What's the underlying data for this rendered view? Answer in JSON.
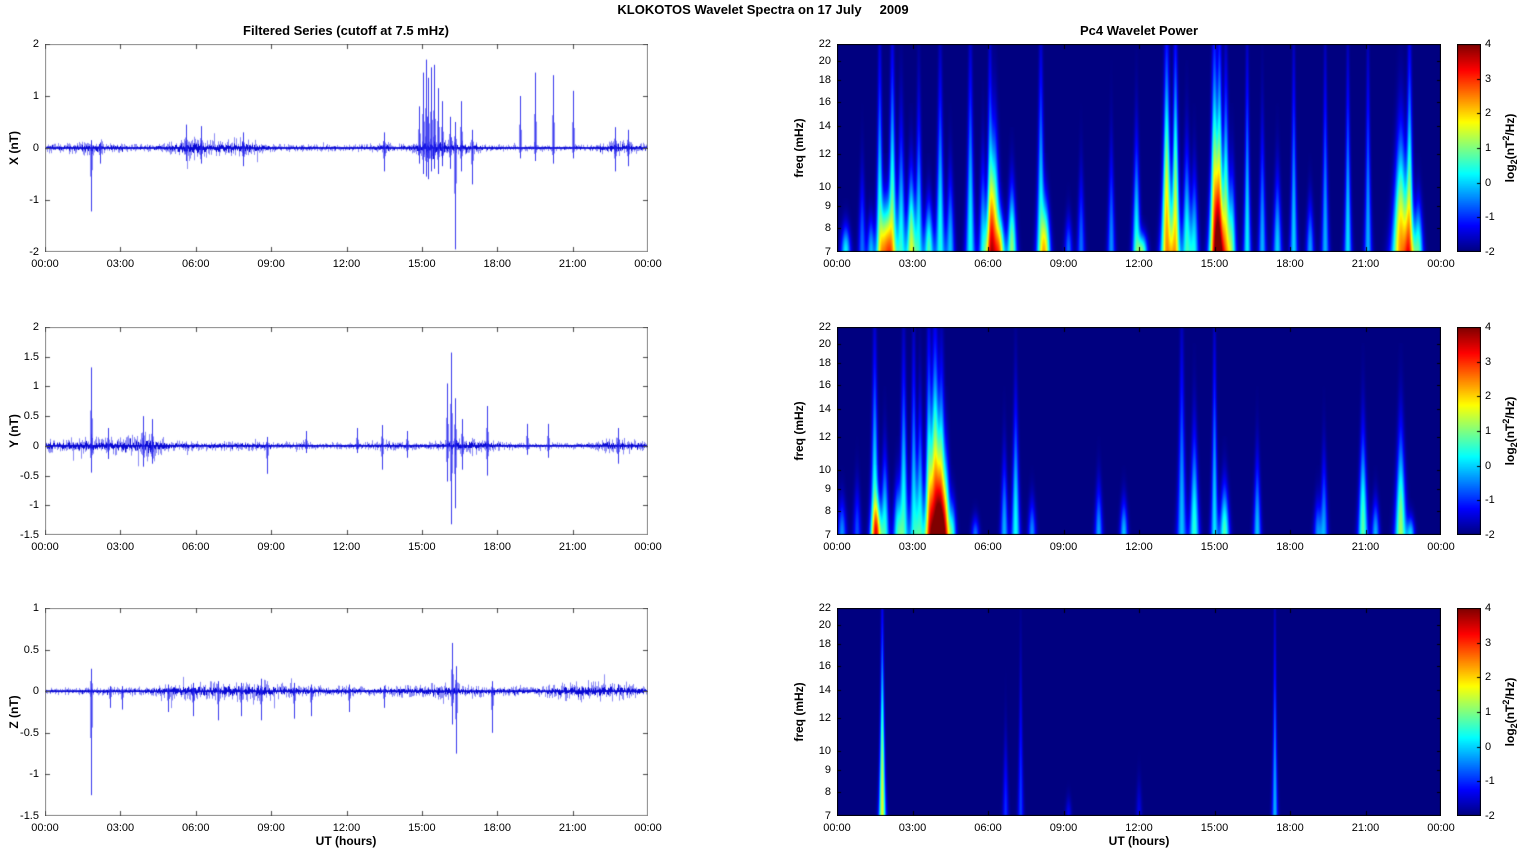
{
  "header": {
    "title": "KLOKOTOS Wavelet Spectra on 17 July     2009"
  },
  "panels": {
    "series_x": {
      "title": "Filtered Series (cutoff at 7.5 mHz)",
      "ylabel": "X (nT)"
    },
    "series_y": {
      "ylabel": "Y (nT)"
    },
    "series_z": {
      "ylabel": "Z (nT)"
    },
    "wavelet_x": {
      "title": "Pc4 Wavelet Power",
      "ylabel": "freq (mHz)"
    },
    "wavelet_y": {
      "ylabel": "freq (mHz)"
    },
    "wavelet_z": {
      "ylabel": "freq (mHz)"
    }
  },
  "time_axis": {
    "xlabel": "UT (hours)",
    "tick_labels": [
      "00:00",
      "03:00",
      "06:00",
      "09:00",
      "12:00",
      "15:00",
      "18:00",
      "21:00",
      "00:00"
    ],
    "tick_hours": [
      0,
      3,
      6,
      9,
      12,
      15,
      18,
      21,
      24
    ]
  },
  "colorbar": {
    "ticks": [
      "4",
      "3",
      "2",
      "1",
      "0",
      "-1",
      "-2"
    ],
    "clim": [
      -2,
      4
    ],
    "label": {
      "pre": "log",
      "sub": "2",
      "mid": "(nT",
      "sup": "2",
      "post": "/Hz)"
    }
  },
  "colors": {
    "line": "#0A0AE6",
    "line_soft": "rgba(20,20,235,0.55)",
    "background": "#FFFFFF",
    "colormap": "jet"
  },
  "chart_data": [
    {
      "id": "filtered-series-x",
      "type": "line",
      "title": "Filtered Series (cutoff at 7.5 mHz)",
      "ylabel": "X (nT)",
      "xlabel": "UT (hours)",
      "ylim": [
        -2,
        2
      ],
      "yticks": [
        "2",
        "1",
        "0",
        "-1",
        "-2"
      ],
      "x_range_hours": [
        0,
        24
      ],
      "grid": false,
      "noise_envelope": [
        [
          0,
          0.08
        ],
        [
          0.8,
          0.09
        ],
        [
          1.6,
          0.12
        ],
        [
          2.1,
          0.14
        ],
        [
          2.6,
          0.09
        ],
        [
          3.5,
          0.06
        ],
        [
          4.6,
          0.07
        ],
        [
          5.2,
          0.12
        ],
        [
          5.7,
          0.2
        ],
        [
          6.1,
          0.22
        ],
        [
          6.6,
          0.13
        ],
        [
          7.2,
          0.15
        ],
        [
          7.8,
          0.17
        ],
        [
          8.4,
          0.12
        ],
        [
          9.0,
          0.07
        ],
        [
          10,
          0.06
        ],
        [
          11,
          0.06
        ],
        [
          12,
          0.06
        ],
        [
          13.2,
          0.07
        ],
        [
          13.6,
          0.12
        ],
        [
          14.1,
          0.07
        ],
        [
          14.8,
          0.1
        ],
        [
          15.2,
          0.2
        ],
        [
          15.6,
          0.22
        ],
        [
          16.0,
          0.15
        ],
        [
          16.5,
          0.13
        ],
        [
          17.2,
          0.09
        ],
        [
          18,
          0.06
        ],
        [
          19,
          0.05
        ],
        [
          20,
          0.05
        ],
        [
          21,
          0.05
        ],
        [
          21.9,
          0.06
        ],
        [
          22.5,
          0.14
        ],
        [
          23.0,
          0.14
        ],
        [
          23.5,
          0.1
        ],
        [
          24,
          0.07
        ]
      ],
      "spikes": [
        [
          1.85,
          0.15,
          -1.22
        ],
        [
          2.2,
          0.1,
          -0.3
        ],
        [
          5.6,
          0.45,
          -0.25
        ],
        [
          6.2,
          0.42,
          -0.3
        ],
        [
          7.9,
          0.3,
          -0.35
        ],
        [
          13.5,
          0.3,
          -0.45
        ],
        [
          14.9,
          0.8,
          -0.3
        ],
        [
          15.05,
          1.45,
          -0.5
        ],
        [
          15.15,
          1.7,
          -0.55
        ],
        [
          15.25,
          1.35,
          -0.6
        ],
        [
          15.35,
          1.55,
          -0.45
        ],
        [
          15.5,
          1.6,
          -0.4
        ],
        [
          15.65,
          1.15,
          -0.5
        ],
        [
          15.8,
          0.9,
          -0.35
        ],
        [
          16.1,
          0.6,
          -0.4
        ],
        [
          16.3,
          0.5,
          -1.95
        ],
        [
          16.55,
          0.9,
          -0.45
        ],
        [
          17.0,
          0.35,
          -0.7
        ],
        [
          18.9,
          1.0,
          -0.2
        ],
        [
          19.5,
          1.45,
          -0.25
        ],
        [
          20.2,
          1.4,
          -0.3
        ],
        [
          21.0,
          1.1,
          -0.2
        ],
        [
          22.7,
          0.4,
          -0.45
        ],
        [
          23.2,
          0.35,
          -0.35
        ]
      ]
    },
    {
      "id": "filtered-series-y",
      "type": "line",
      "ylabel": "Y (nT)",
      "ylim": [
        -1.5,
        2
      ],
      "yticks": [
        "2",
        "1.5",
        "1",
        "0.5",
        "0",
        "-0.5",
        "-1",
        "-1.5"
      ],
      "x_range_hours": [
        0,
        24
      ],
      "grid": false,
      "noise_envelope": [
        [
          0,
          0.1
        ],
        [
          0.5,
          0.11
        ],
        [
          1.2,
          0.12
        ],
        [
          2.0,
          0.13
        ],
        [
          2.8,
          0.13
        ],
        [
          3.4,
          0.15
        ],
        [
          3.9,
          0.2
        ],
        [
          4.3,
          0.22
        ],
        [
          4.7,
          0.12
        ],
        [
          5.2,
          0.08
        ],
        [
          6,
          0.07
        ],
        [
          7,
          0.07
        ],
        [
          8,
          0.08
        ],
        [
          9,
          0.06
        ],
        [
          10,
          0.06
        ],
        [
          11,
          0.05
        ],
        [
          12,
          0.05
        ],
        [
          13.2,
          0.06
        ],
        [
          13.5,
          0.1
        ],
        [
          14,
          0.06
        ],
        [
          15,
          0.06
        ],
        [
          15.8,
          0.08
        ],
        [
          16.2,
          0.12
        ],
        [
          16.8,
          0.12
        ],
        [
          17.5,
          0.11
        ],
        [
          18.2,
          0.07
        ],
        [
          19,
          0.05
        ],
        [
          20,
          0.05
        ],
        [
          21,
          0.05
        ],
        [
          21.9,
          0.06
        ],
        [
          22.5,
          0.12
        ],
        [
          23.1,
          0.11
        ],
        [
          23.6,
          0.09
        ],
        [
          24,
          0.07
        ]
      ],
      "spikes": [
        [
          1.85,
          1.32,
          -0.45
        ],
        [
          2.5,
          0.3,
          -0.22
        ],
        [
          3.9,
          0.5,
          -0.35
        ],
        [
          4.25,
          0.45,
          -0.3
        ],
        [
          8.85,
          0.15,
          -0.47
        ],
        [
          10.4,
          0.25,
          -0.12
        ],
        [
          12.4,
          0.3,
          -0.12
        ],
        [
          13.4,
          0.35,
          -0.4
        ],
        [
          14.4,
          0.25,
          -0.2
        ],
        [
          16.0,
          1.05,
          -0.6
        ],
        [
          16.15,
          1.57,
          -1.32
        ],
        [
          16.3,
          0.8,
          -1.05
        ],
        [
          16.6,
          0.45,
          -0.4
        ],
        [
          17.6,
          0.67,
          -0.5
        ],
        [
          19.2,
          0.37,
          -0.15
        ],
        [
          20.0,
          0.37,
          -0.2
        ],
        [
          22.8,
          0.3,
          -0.3
        ]
      ]
    },
    {
      "id": "filtered-series-z",
      "type": "line",
      "ylabel": "Z (nT)",
      "xlabel": "UT (hours)",
      "ylim": [
        -1.5,
        1
      ],
      "yticks": [
        "1",
        "0.5",
        "0",
        "-0.5",
        "-1",
        "-1.5"
      ],
      "x_range_hours": [
        0,
        24
      ],
      "grid": false,
      "noise_envelope": [
        [
          0,
          0.035
        ],
        [
          1,
          0.035
        ],
        [
          2,
          0.04
        ],
        [
          3,
          0.045
        ],
        [
          4,
          0.05
        ],
        [
          4.6,
          0.07
        ],
        [
          5.2,
          0.09
        ],
        [
          6,
          0.1
        ],
        [
          6.8,
          0.11
        ],
        [
          7.6,
          0.1
        ],
        [
          8.4,
          0.11
        ],
        [
          9.2,
          0.09
        ],
        [
          10,
          0.07
        ],
        [
          11,
          0.06
        ],
        [
          12,
          0.055
        ],
        [
          13,
          0.05
        ],
        [
          14,
          0.06
        ],
        [
          15,
          0.07
        ],
        [
          15.7,
          0.09
        ],
        [
          16.3,
          0.08
        ],
        [
          17,
          0.07
        ],
        [
          18,
          0.05
        ],
        [
          19,
          0.05
        ],
        [
          19.8,
          0.06
        ],
        [
          20.6,
          0.1
        ],
        [
          21.4,
          0.1
        ],
        [
          22.2,
          0.1
        ],
        [
          23.0,
          0.1
        ],
        [
          23.6,
          0.07
        ],
        [
          24,
          0.05
        ]
      ],
      "spikes": [
        [
          1.85,
          0.27,
          -1.25
        ],
        [
          2.6,
          0.06,
          -0.2
        ],
        [
          3.05,
          0.06,
          -0.22
        ],
        [
          4.9,
          0.08,
          -0.25
        ],
        [
          5.9,
          0.1,
          -0.3
        ],
        [
          6.9,
          0.12,
          -0.35
        ],
        [
          7.8,
          0.1,
          -0.3
        ],
        [
          8.6,
          0.15,
          -0.35
        ],
        [
          9.9,
          0.1,
          -0.33
        ],
        [
          10.6,
          0.08,
          -0.3
        ],
        [
          12.1,
          0.08,
          -0.25
        ],
        [
          13.5,
          0.06,
          -0.2
        ],
        [
          16.2,
          0.58,
          -0.4
        ],
        [
          16.35,
          0.3,
          -0.75
        ],
        [
          17.8,
          0.12,
          -0.5
        ]
      ]
    },
    {
      "id": "pc4-wavelet-power-x",
      "type": "heatmap",
      "title": "Pc4 Wavelet Power",
      "ylabel": "freq (mHz)",
      "freq_lim": [
        7,
        22
      ],
      "freq_scale": "log",
      "freq_ticks": [
        "22",
        "20",
        "18",
        "16",
        "14",
        "12",
        "10",
        "9",
        "8",
        "7"
      ],
      "clim": [
        -2,
        4
      ],
      "x_range_hours": [
        0,
        24
      ],
      "streaks": [
        [
          0.35,
          8.5,
          2.2,
          0.05
        ],
        [
          1.0,
          12,
          1.4,
          0.04
        ],
        [
          1.35,
          9,
          1.8,
          0.04
        ],
        [
          1.7,
          23,
          2.6,
          0.045
        ],
        [
          1.95,
          10,
          3.8,
          0.06
        ],
        [
          2.2,
          23,
          3.1,
          0.05
        ],
        [
          2.55,
          16,
          2.4,
          0.05
        ],
        [
          2.95,
          12,
          3.4,
          0.05
        ],
        [
          3.25,
          18,
          2.2,
          0.045
        ],
        [
          3.65,
          10,
          2.7,
          0.05
        ],
        [
          4.1,
          21,
          2.4,
          0.05
        ],
        [
          4.5,
          12,
          1.9,
          0.045
        ],
        [
          5.3,
          23,
          2.3,
          0.05
        ],
        [
          5.8,
          13,
          2.0,
          0.045
        ],
        [
          6.08,
          23,
          2.4,
          0.045
        ],
        [
          6.25,
          15,
          4.1,
          0.07
        ],
        [
          6.5,
          9,
          2.4,
          0.05
        ],
        [
          6.95,
          11,
          3.1,
          0.05
        ],
        [
          8.1,
          23,
          2.5,
          0.05
        ],
        [
          8.3,
          10,
          3.0,
          0.05
        ],
        [
          9.2,
          9,
          1.4,
          0.04
        ],
        [
          9.7,
          12,
          1.4,
          0.04
        ],
        [
          10.9,
          14,
          1.6,
          0.04
        ],
        [
          11.9,
          15,
          2.4,
          0.045
        ],
        [
          12.15,
          8,
          2.6,
          0.05
        ],
        [
          13.1,
          24,
          4.3,
          0.06
        ],
        [
          13.45,
          24,
          3.8,
          0.05
        ],
        [
          13.9,
          14,
          2.5,
          0.05
        ],
        [
          14.2,
          12,
          2.1,
          0.045
        ],
        [
          15.0,
          24,
          4.4,
          0.06
        ],
        [
          15.2,
          24,
          4.1,
          0.05
        ],
        [
          15.45,
          20,
          3.4,
          0.05
        ],
        [
          15.7,
          12,
          2.4,
          0.045
        ],
        [
          16.3,
          23,
          2.2,
          0.04
        ],
        [
          16.9,
          16,
          1.8,
          0.04
        ],
        [
          17.5,
          12,
          2.0,
          0.045
        ],
        [
          18.15,
          23,
          2.0,
          0.04
        ],
        [
          18.8,
          10,
          1.7,
          0.04
        ],
        [
          19.4,
          23,
          1.8,
          0.04
        ],
        [
          20.3,
          22,
          2.1,
          0.04
        ],
        [
          21.1,
          23,
          1.8,
          0.04
        ],
        [
          22.4,
          15,
          4.3,
          0.09
        ],
        [
          22.75,
          23,
          3.4,
          0.05
        ],
        [
          23.1,
          10,
          2.6,
          0.05
        ]
      ]
    },
    {
      "id": "pc4-wavelet-power-y",
      "type": "heatmap",
      "ylabel": "freq (mHz)",
      "freq_lim": [
        7,
        22
      ],
      "freq_scale": "log",
      "freq_ticks": [
        "22",
        "20",
        "18",
        "16",
        "14",
        "12",
        "10",
        "9",
        "8",
        "7"
      ],
      "clim": [
        -2,
        4
      ],
      "x_range_hours": [
        0,
        24
      ],
      "streaks": [
        [
          0.2,
          9,
          1.6,
          0.045
        ],
        [
          0.8,
          10,
          1.2,
          0.04
        ],
        [
          1.5,
          23,
          2.6,
          0.05
        ],
        [
          1.58,
          9,
          3.0,
          0.05
        ],
        [
          1.9,
          12,
          2.4,
          0.045
        ],
        [
          2.4,
          10,
          2.1,
          0.045
        ],
        [
          2.65,
          21,
          2.5,
          0.05
        ],
        [
          3.05,
          22,
          2.2,
          0.045
        ],
        [
          3.3,
          16,
          2.3,
          0.045
        ],
        [
          3.65,
          23,
          3.0,
          0.05
        ],
        [
          3.9,
          21,
          4.9,
          0.07
        ],
        [
          4.15,
          18,
          4.2,
          0.06
        ],
        [
          4.35,
          12,
          2.6,
          0.05
        ],
        [
          4.6,
          9,
          1.9,
          0.04
        ],
        [
          5.5,
          8,
          1.4,
          0.04
        ],
        [
          6.65,
          12,
          1.8,
          0.04
        ],
        [
          7.1,
          17,
          2.3,
          0.045
        ],
        [
          7.75,
          9,
          1.6,
          0.04
        ],
        [
          10.4,
          10,
          1.7,
          0.04
        ],
        [
          11.4,
          9,
          1.9,
          0.04
        ],
        [
          13.7,
          23,
          1.9,
          0.05
        ],
        [
          14.2,
          14,
          2.5,
          0.05
        ],
        [
          15.0,
          23,
          2.1,
          0.04
        ],
        [
          15.4,
          10,
          2.7,
          0.05
        ],
        [
          16.7,
          12,
          1.9,
          0.04
        ],
        [
          19.1,
          9,
          1.5,
          0.04
        ],
        [
          19.35,
          12,
          1.7,
          0.04
        ],
        [
          20.9,
          14,
          2.8,
          0.05
        ],
        [
          21.4,
          9,
          1.8,
          0.04
        ],
        [
          22.4,
          14,
          3.2,
          0.06
        ],
        [
          22.8,
          8,
          1.9,
          0.04
        ]
      ]
    },
    {
      "id": "pc4-wavelet-power-z",
      "type": "heatmap",
      "ylabel": "freq (mHz)",
      "freq_lim": [
        7,
        22
      ],
      "freq_scale": "log",
      "freq_ticks": [
        "22",
        "20",
        "18",
        "16",
        "14",
        "12",
        "10",
        "9",
        "8",
        "7"
      ],
      "clim": [
        -2,
        4
      ],
      "x_range_hours": [
        0,
        24
      ],
      "streaks": [
        [
          1.8,
          23,
          3.6,
          0.035
        ],
        [
          6.7,
          12,
          1.0,
          0.03
        ],
        [
          7.3,
          19,
          1.1,
          0.03
        ],
        [
          9.2,
          8,
          0.7,
          0.03
        ],
        [
          12.0,
          9,
          0.6,
          0.03
        ],
        [
          17.4,
          23,
          1.8,
          0.03
        ]
      ]
    }
  ]
}
